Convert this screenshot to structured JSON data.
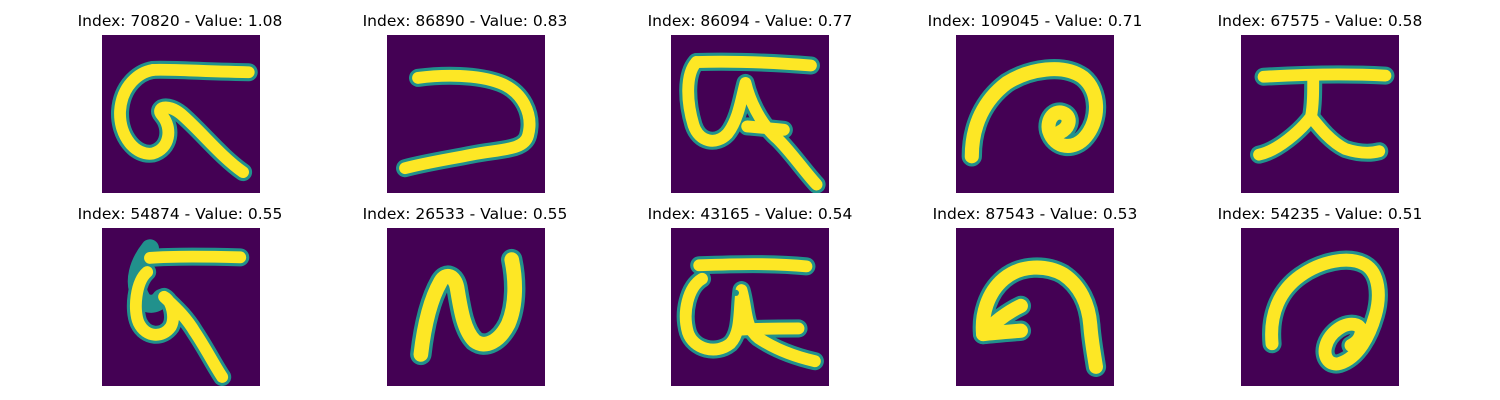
{
  "figure": {
    "background": "#ffffff",
    "colormap": "viridis",
    "colors": {
      "background_cell": "#440154",
      "stroke_edge": "#21918c",
      "stroke_mid": "#5ec962",
      "stroke_core": "#fde725"
    }
  },
  "panels": [
    {
      "title": "Index: 70820 - Value: 1.08",
      "glyph": "handwritten-character-1"
    },
    {
      "title": "Index: 86890 - Value: 0.83",
      "glyph": "handwritten-character-2"
    },
    {
      "title": "Index: 86094 - Value: 0.77",
      "glyph": "handwritten-character-3"
    },
    {
      "title": "Index: 109045 - Value: 0.71",
      "glyph": "handwritten-character-4"
    },
    {
      "title": "Index: 67575 - Value: 0.58",
      "glyph": "handwritten-character-5"
    },
    {
      "title": "Index: 54874 - Value: 0.55",
      "glyph": "handwritten-character-6"
    },
    {
      "title": "Index: 26533 - Value: 0.55",
      "glyph": "handwritten-character-7"
    },
    {
      "title": "Index: 43165 - Value: 0.54",
      "glyph": "handwritten-character-8"
    },
    {
      "title": "Index: 87543 - Value: 0.53",
      "glyph": "handwritten-character-9"
    },
    {
      "title": "Index: 54235 - Value: 0.51",
      "glyph": "handwritten-character-10"
    }
  ]
}
